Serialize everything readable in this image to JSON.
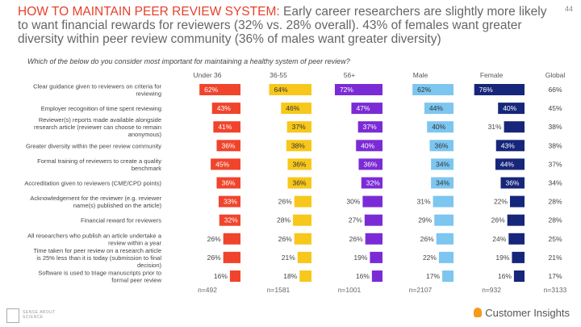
{
  "title": {
    "lead": "HOW TO MAINTAIN PEER REVIEW SYSTEM:",
    "rest": " Early career researchers are slightly more likely to want financial rewards for reviewers (32% vs. 28% overall). 43% of females want greater diversity within peer review community (36% of males want greater diversity)"
  },
  "page_number": "44",
  "question": "Which of the below do you consider most important for maintaining a healthy system of peer review?",
  "logos": {
    "left": "SENSE ABOUT SCIENCE",
    "right": "Customer Insights"
  },
  "chart_data": {
    "type": "bar",
    "categories": [
      "Clear guidance given to reviewers on criteria for reviewing",
      "Employer recognition of time spent reviewing",
      "Reviewer(s) reports made available alongside research article (reviewer can choose to remain anonymous)",
      "Greater diversity within the peer review community",
      "Formal training of reviewers to create a quality benchmark",
      "Accreditation given to reviewers (CME/CPD points)",
      "Acknowledgement for the reviewer (e.g. reviewer name(s) published on the article)",
      "Financial reward for reviewers",
      "All researchers who publish an article undertake a review within a year",
      "Time taken for peer review on a research article is 25% less than it is today (submission to final decision)",
      "Software is used to triage manuscripts prior to formal peer review"
    ],
    "series": [
      {
        "name": "Under 36",
        "color": "#f0442c",
        "values": [
          62,
          43,
          41,
          36,
          45,
          36,
          33,
          32,
          26,
          26,
          16
        ],
        "n": "n=492"
      },
      {
        "name": "36-55",
        "color": "#f7c71b",
        "values": [
          64,
          46,
          37,
          38,
          36,
          36,
          26,
          28,
          26,
          21,
          18
        ],
        "n": "n=1581"
      },
      {
        "name": "56+",
        "color": "#7b2bd6",
        "values": [
          72,
          47,
          37,
          40,
          36,
          32,
          30,
          27,
          26,
          19,
          16
        ],
        "n": "n=1001"
      },
      {
        "name": "Male",
        "color": "#7cc6f0",
        "values": [
          62,
          44,
          40,
          36,
          34,
          34,
          31,
          29,
          26,
          22,
          17
        ],
        "n": "n=2107"
      },
      {
        "name": "Female",
        "color": "#16267a",
        "values": [
          76,
          40,
          31,
          43,
          44,
          36,
          22,
          26,
          24,
          19,
          16
        ],
        "n": "n=932"
      }
    ],
    "global": {
      "name": "Global",
      "values": [
        66,
        45,
        38,
        38,
        37,
        34,
        28,
        28,
        25,
        21,
        17
      ],
      "n": "n=3133"
    },
    "value_suffix": "%",
    "xlim": [
      0,
      100
    ]
  }
}
